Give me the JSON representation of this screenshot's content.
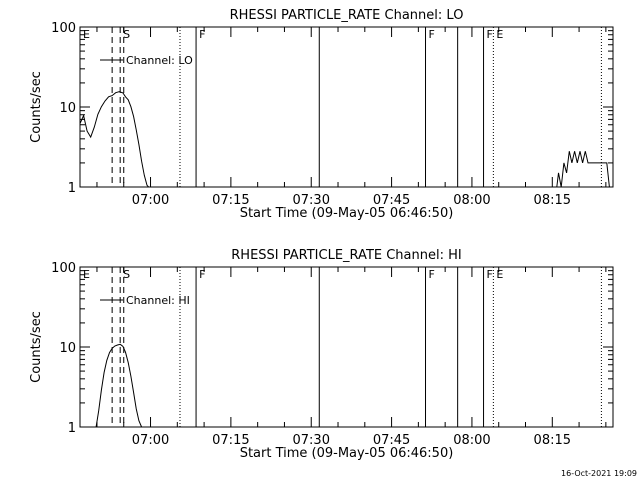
{
  "chart_data": [
    {
      "type": "line",
      "title": "RHESSI PARTICLE_RATE Channel: LO",
      "xlabel": "Start Time (09-May-05 06:46:50)",
      "ylabel": "Counts/sec",
      "y_scale": "log",
      "ylim": [
        1,
        100
      ],
      "xlim": [
        "06:46:50",
        "08:26:20"
      ],
      "x_ticks": [
        "07:00",
        "07:15",
        "07:30",
        "07:45",
        "08:00",
        "08:15"
      ],
      "y_ticks": [
        "1",
        "10",
        "100"
      ],
      "legend": "top-left",
      "series": [
        {
          "name": "Channel: LO",
          "x": [
            "06:46:50",
            "06:47:30",
            "06:48:10",
            "06:48:50",
            "06:49:30",
            "06:50:10",
            "06:50:50",
            "06:51:30",
            "06:52:10",
            "06:52:50",
            "06:53:30",
            "06:54:10",
            "06:54:50",
            "06:55:20",
            "06:55:50",
            "06:56:20",
            "06:56:50",
            "06:57:20",
            "06:57:50",
            "06:58:20",
            "06:58:50",
            "06:59:20",
            "06:59:40",
            "08:15:50",
            "08:16:10",
            "08:16:40",
            "08:17:10",
            "08:17:40",
            "08:18:10",
            "08:18:40",
            "08:19:10",
            "08:19:40",
            "08:20:10",
            "08:20:40",
            "08:21:10",
            "08:21:40",
            "08:22:20",
            "08:23:00",
            "08:23:40",
            "08:24:10",
            "08:24:40",
            "08:25:10",
            "08:25:40"
          ],
          "values": [
            6.2,
            7.8,
            5.0,
            4.2,
            5.6,
            8.1,
            10.1,
            11.9,
            13.4,
            13.9,
            15.1,
            15.6,
            15.0,
            13.4,
            12.3,
            10.1,
            7.6,
            5.2,
            3.4,
            2.1,
            1.4,
            1.05,
            1.0,
            1.0,
            1.5,
            1.0,
            2.0,
            1.5,
            2.8,
            2.0,
            2.8,
            2.0,
            2.8,
            2.0,
            2.8,
            2.0,
            2.0,
            2.0,
            2.0,
            2.0,
            2.0,
            2.0,
            1.0
          ]
        }
      ],
      "annotations": [
        {
          "label": "E",
          "time": "06:46:50",
          "style": "none"
        },
        {
          "label": "S",
          "time": "06:54:20",
          "style": "dashed"
        },
        {
          "label": "",
          "time": "06:52:50",
          "style": "dashed"
        },
        {
          "label": "",
          "time": "06:55:00",
          "style": "dashed"
        },
        {
          "label": "",
          "time": "07:05:30",
          "style": "dotted"
        },
        {
          "label": "F",
          "time": "07:08:30",
          "style": "solid"
        },
        {
          "label": "",
          "time": "07:31:30",
          "style": "solid"
        },
        {
          "label": "F",
          "time": "07:51:20",
          "style": "solid"
        },
        {
          "label": "",
          "time": "07:57:20",
          "style": "solid"
        },
        {
          "label": "F",
          "time": "08:02:10",
          "style": "solid"
        },
        {
          "label": "E",
          "time": "08:04:00",
          "style": "dotted"
        },
        {
          "label": "",
          "time": "08:24:10",
          "style": "dotted"
        }
      ]
    },
    {
      "type": "line",
      "title": "RHESSI PARTICLE_RATE Channel: HI",
      "xlabel": "Start Time (09-May-05 06:46:50)",
      "ylabel": "Counts/sec",
      "y_scale": "log",
      "ylim": [
        1,
        100
      ],
      "xlim": [
        "06:46:50",
        "08:26:20"
      ],
      "x_ticks": [
        "07:00",
        "07:15",
        "07:30",
        "07:45",
        "08:00",
        "08:15"
      ],
      "y_ticks": [
        "1",
        "10",
        "100"
      ],
      "legend": "top-left",
      "series": [
        {
          "name": "Channel: HI",
          "x": [
            "06:49:50",
            "06:50:20",
            "06:50:50",
            "06:51:20",
            "06:51:50",
            "06:52:20",
            "06:52:50",
            "06:53:20",
            "06:53:50",
            "06:54:20",
            "06:54:50",
            "06:55:20",
            "06:55:50",
            "06:56:20",
            "06:56:50",
            "06:57:20",
            "06:57:50",
            "06:58:20"
          ],
          "values": [
            1.0,
            1.6,
            2.9,
            4.8,
            6.8,
            8.5,
            9.6,
            10.3,
            10.6,
            10.8,
            10.2,
            8.6,
            6.4,
            4.3,
            2.7,
            1.7,
            1.2,
            1.0
          ]
        }
      ],
      "annotations": [
        {
          "label": "E",
          "time": "06:46:50",
          "style": "none"
        },
        {
          "label": "S",
          "time": "06:54:20",
          "style": "dashed"
        },
        {
          "label": "",
          "time": "06:52:50",
          "style": "dashed"
        },
        {
          "label": "",
          "time": "06:55:00",
          "style": "dashed"
        },
        {
          "label": "",
          "time": "07:05:30",
          "style": "dotted"
        },
        {
          "label": "F",
          "time": "07:08:30",
          "style": "solid"
        },
        {
          "label": "",
          "time": "07:31:30",
          "style": "solid"
        },
        {
          "label": "F",
          "time": "07:51:20",
          "style": "solid"
        },
        {
          "label": "",
          "time": "07:57:20",
          "style": "solid"
        },
        {
          "label": "F",
          "time": "08:02:10",
          "style": "solid"
        },
        {
          "label": "E",
          "time": "08:04:00",
          "style": "dotted"
        },
        {
          "label": "",
          "time": "08:24:10",
          "style": "dotted"
        }
      ]
    }
  ],
  "footer": {
    "timestamp": "16-Oct-2021 19:09"
  }
}
